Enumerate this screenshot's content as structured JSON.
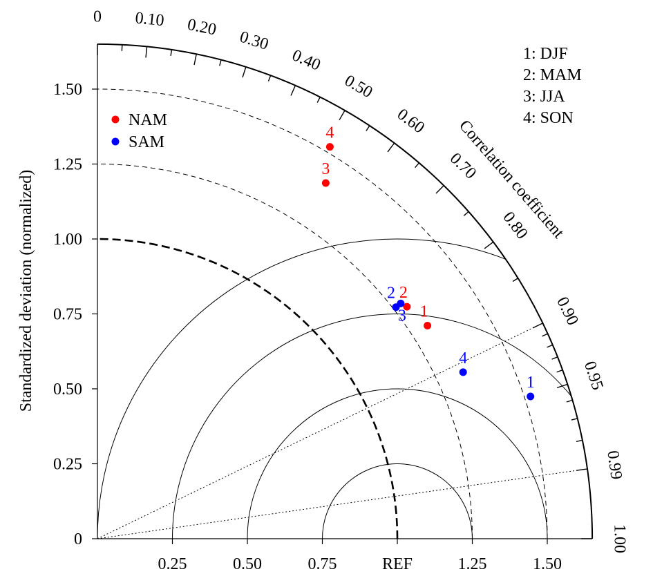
{
  "chart_data": {
    "type": "scatter",
    "subtype": "taylor_diagram",
    "x_axis": {
      "ticks": [
        0.25,
        0.5,
        0.75,
        1.0,
        1.25,
        1.5
      ],
      "tick_labels": [
        "0.25",
        "0.50",
        "0.75",
        "REF",
        "1.25",
        "1.50"
      ],
      "range": [
        0,
        1.65
      ]
    },
    "y_axis": {
      "label": "Standardized deviation (normalized)",
      "ticks": [
        0,
        0.25,
        0.5,
        0.75,
        1.0,
        1.25,
        1.5
      ],
      "tick_labels": [
        "0",
        "0.25",
        "0.50",
        "0.75",
        "1.00",
        "1.25",
        "1.50"
      ],
      "range": [
        0,
        1.65
      ]
    },
    "correlation_axis": {
      "label": "Correlation coefficient",
      "labeled_values": [
        0,
        0.1,
        0.2,
        0.3,
        0.4,
        0.5,
        0.6,
        0.7,
        0.8,
        0.9,
        0.95,
        0.99,
        1.0
      ],
      "tick_labels": [
        "0",
        "0.10",
        "0.20",
        "0.30",
        "0.40",
        "0.50",
        "0.60",
        "0.70",
        "0.80",
        "0.90",
        "0.95",
        "0.99",
        "1.00"
      ],
      "minor_ticks": [
        0.05,
        0.15,
        0.25,
        0.35,
        0.45,
        0.55,
        0.65,
        0.75,
        0.85,
        0.91,
        0.92,
        0.93,
        0.94,
        0.96,
        0.97,
        0.98
      ],
      "reference_lines": [
        0.9,
        0.99
      ]
    },
    "std_arcs": [
      1.25,
      1.5
    ],
    "ref_std": 1.0,
    "rmsd_arcs": [
      0.25,
      0.5,
      0.75,
      1.0
    ],
    "series": [
      {
        "name": "NAM",
        "color": "#ff0000",
        "points": [
          {
            "label": "1",
            "std": 1.31,
            "corr": 0.84
          },
          {
            "label": "2",
            "std": 1.29,
            "corr": 0.8
          },
          {
            "label": "3",
            "std": 1.41,
            "corr": 0.54
          },
          {
            "label": "4",
            "std": 1.52,
            "corr": 0.51
          }
        ]
      },
      {
        "name": "SAM",
        "color": "#0000ff",
        "points": [
          {
            "label": "1",
            "std": 1.52,
            "corr": 0.95
          },
          {
            "label": "2",
            "std": 1.26,
            "corr": 0.79
          },
          {
            "label": "3",
            "std": 1.28,
            "corr": 0.79
          },
          {
            "label": "4",
            "std": 1.34,
            "corr": 0.91
          }
        ]
      }
    ],
    "season_key": [
      "1: DJF",
      "2: MAM",
      "3: JJA",
      "4: SON"
    ]
  }
}
